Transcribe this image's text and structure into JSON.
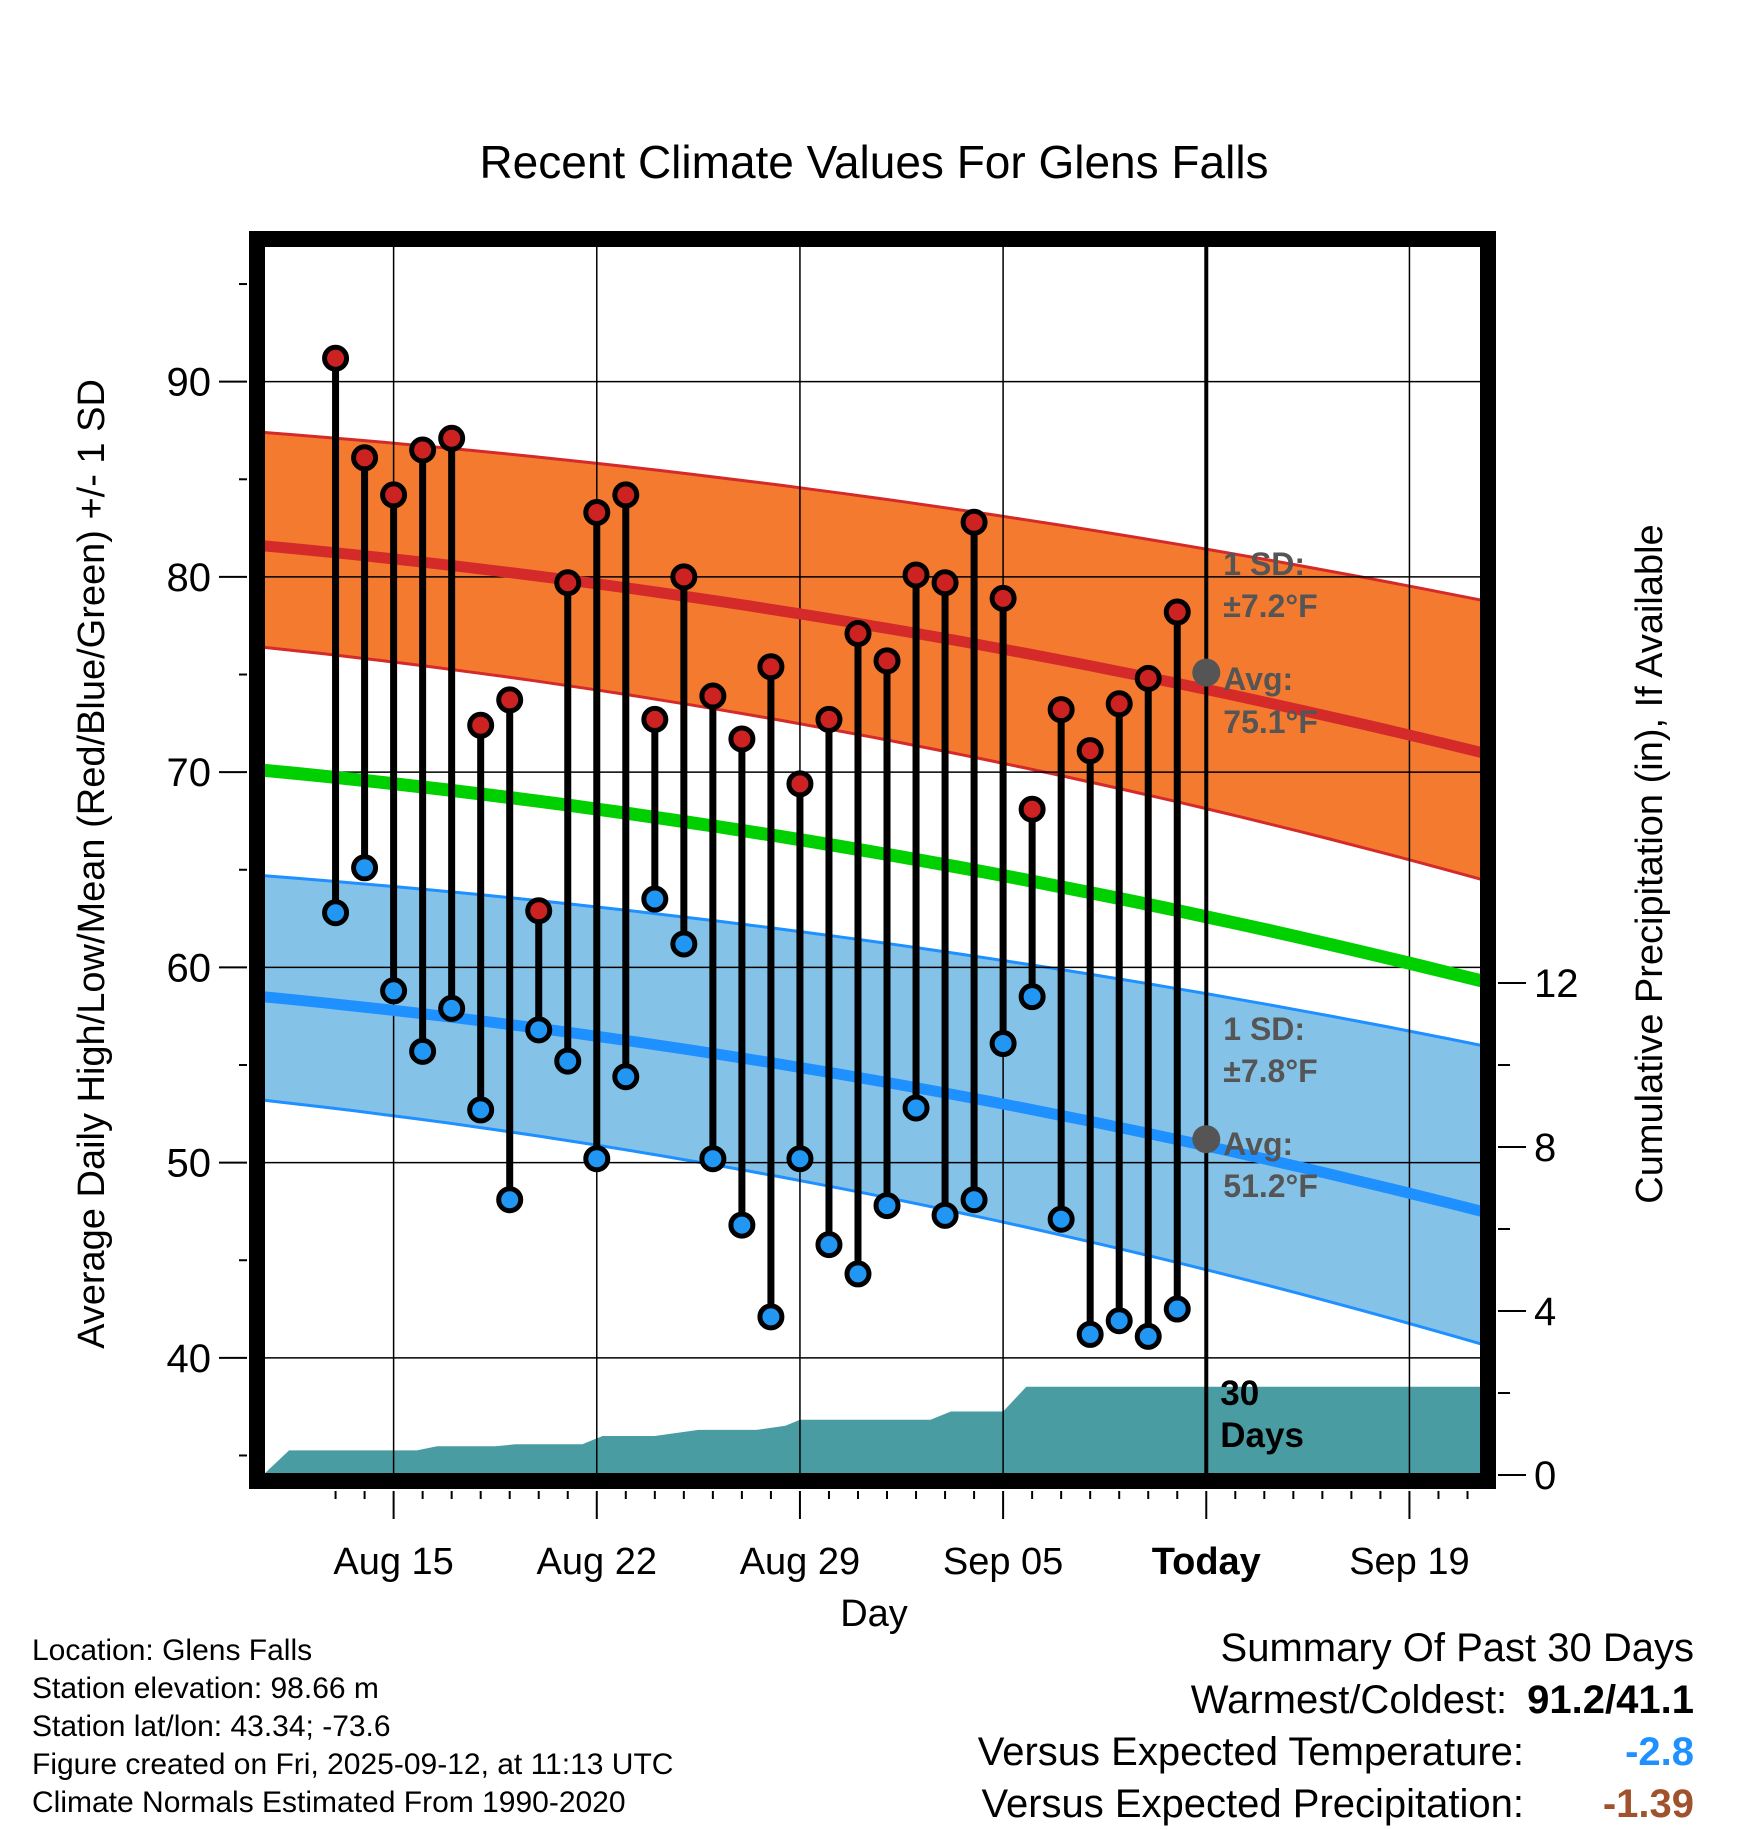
{
  "chart_data": {
    "type": "line",
    "title": "Recent Climate Values For Glens Falls",
    "xlabel": "Day",
    "ylabel": "Average Daily High/Low/Mean (Red/Blue/Green) +/- 1 SD",
    "y2label": "Cumulative Precipitation (in), If Available",
    "ylim": [
      34,
      97
    ],
    "y2lim": [
      0,
      30
    ],
    "xlim_days": [
      -32.5,
      9.5
    ],
    "y_ticks": [
      40,
      50,
      60,
      70,
      80,
      90
    ],
    "y2_ticks": [
      0,
      4,
      8,
      12
    ],
    "x_ticks": [
      {
        "label": "Aug 15",
        "day": -28
      },
      {
        "label": "Aug 22",
        "day": -21
      },
      {
        "label": "Aug 29",
        "day": -14
      },
      {
        "label": "Sep 05",
        "day": -7
      },
      {
        "label": "Today",
        "day": 0
      },
      {
        "label": "Sep 19",
        "day": 7
      }
    ],
    "grid": true,
    "daily": {
      "days": [
        -30,
        -29,
        -28,
        -27,
        -26,
        -25,
        -24,
        -23,
        -22,
        -21,
        -20,
        -19,
        -18,
        -17,
        -16,
        -15,
        -14,
        -13,
        -12,
        -11,
        -10,
        -9,
        -8,
        -7,
        -6,
        -5,
        -4,
        -3,
        -2,
        -1
      ],
      "highs": [
        91.2,
        86.1,
        84.2,
        86.5,
        87.1,
        72.4,
        73.7,
        62.9,
        79.7,
        83.3,
        84.2,
        72.7,
        80.0,
        73.9,
        71.7,
        75.4,
        69.4,
        72.7,
        77.1,
        75.7,
        80.1,
        79.7,
        82.8,
        78.9,
        68.1,
        73.2,
        71.1,
        73.5,
        74.8,
        78.2
      ],
      "lows": [
        62.8,
        65.1,
        58.8,
        55.7,
        57.9,
        52.7,
        48.1,
        56.8,
        55.2,
        50.2,
        54.4,
        63.5,
        61.2,
        50.2,
        46.8,
        42.1,
        50.2,
        45.8,
        44.3,
        47.8,
        52.8,
        47.3,
        48.1,
        56.1,
        58.5,
        47.1,
        41.2,
        41.9,
        41.1,
        42.5
      ]
    },
    "normals": {
      "days": [
        -32.5,
        9.5
      ],
      "high_avg": [
        81.6,
        71.0
      ],
      "high_plus_sd": [
        87.4,
        78.8
      ],
      "high_minus_sd": [
        76.4,
        64.5
      ],
      "mean_avg": [
        70.1,
        59.3
      ],
      "low_avg": [
        58.5,
        47.5
      ],
      "low_plus_sd": [
        64.7,
        56.0
      ],
      "low_minus_sd": [
        53.2,
        40.7
      ]
    },
    "precip": {
      "days": [
        -32.5,
        -31.6,
        -29.5,
        -27.2,
        -26.5,
        -24.5,
        -23.8,
        -21.5,
        -20.8,
        -19.5,
        -19.0,
        -17.5,
        -16.6,
        -16.2,
        -15.5,
        -14.5,
        -14.0,
        -13.5,
        -11.5,
        -9.5,
        -8.8,
        -7.8,
        -7.0,
        -6.2,
        -5.2,
        0,
        9.5
      ],
      "values": [
        0,
        0.6,
        0.6,
        0.6,
        0.7,
        0.7,
        0.75,
        0.75,
        0.95,
        0.95,
        0.95,
        1.1,
        1.1,
        1.1,
        1.1,
        1.2,
        1.35,
        1.35,
        1.35,
        1.35,
        1.55,
        1.55,
        1.55,
        2.15,
        2.15,
        2.15,
        2.15
      ]
    },
    "annotations": {
      "high_sd_label": "1 SD:",
      "high_sd_value": "±7.2°F",
      "high_avg_label": "Avg:",
      "high_avg_value": "75.1°F",
      "high_avg_today": 75.1,
      "low_sd_label": "1 SD:",
      "low_sd_value": "±7.8°F",
      "low_avg_label": "Avg:",
      "low_avg_value": "51.2°F",
      "low_avg_today": 51.2,
      "precip_label_1": "30",
      "precip_label_2": "Days"
    },
    "colors": {
      "high_band": "#F47A30",
      "high_line": "#D42A2A",
      "low_band": "#85C2E8",
      "low_line": "#1E90FF",
      "mean_line": "#00D000",
      "precip": "#4A9CA3",
      "high_dot": "#CC2222",
      "low_dot": "#2196F3"
    }
  },
  "info": {
    "location": "Location: Glens Falls",
    "elevation": "Station elevation: 98.66 m",
    "latlon": "Station lat/lon: 43.34; -73.6",
    "created": "Figure created on Fri, 2025-09-12, at 11:13 UTC",
    "normals": "Climate Normals Estimated From 1990-2020"
  },
  "summary": {
    "title": "Summary Of Past 30 Days",
    "warm_label": "Warmest/Coldest:",
    "warm_value": "91.2/41.1",
    "temp_label": "Versus Expected Temperature:",
    "temp_value": "-2.8",
    "precip_label": "Versus Expected Precipitation:",
    "precip_value": "-1.39"
  }
}
